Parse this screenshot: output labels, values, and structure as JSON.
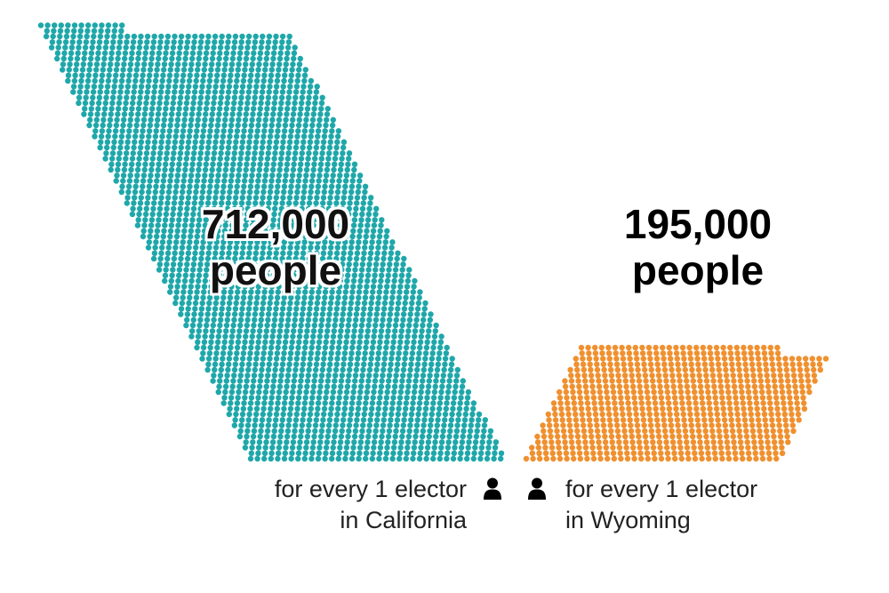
{
  "chart_data": {
    "type": "pictogram",
    "series": [
      {
        "state": "California",
        "value": 712000,
        "value_text": "712,000",
        "unit_text": "people",
        "caption_line1": "for every 1 elector",
        "caption_line2": "in California",
        "color": "#1fa7aa"
      },
      {
        "state": "Wyoming",
        "value": 195000,
        "value_text": "195,000",
        "unit_text": "people",
        "caption_line1": "for every 1 elector",
        "caption_line2": "in Wyoming",
        "color": "#f0902f"
      }
    ]
  },
  "icons": {
    "elector": "person-icon"
  }
}
